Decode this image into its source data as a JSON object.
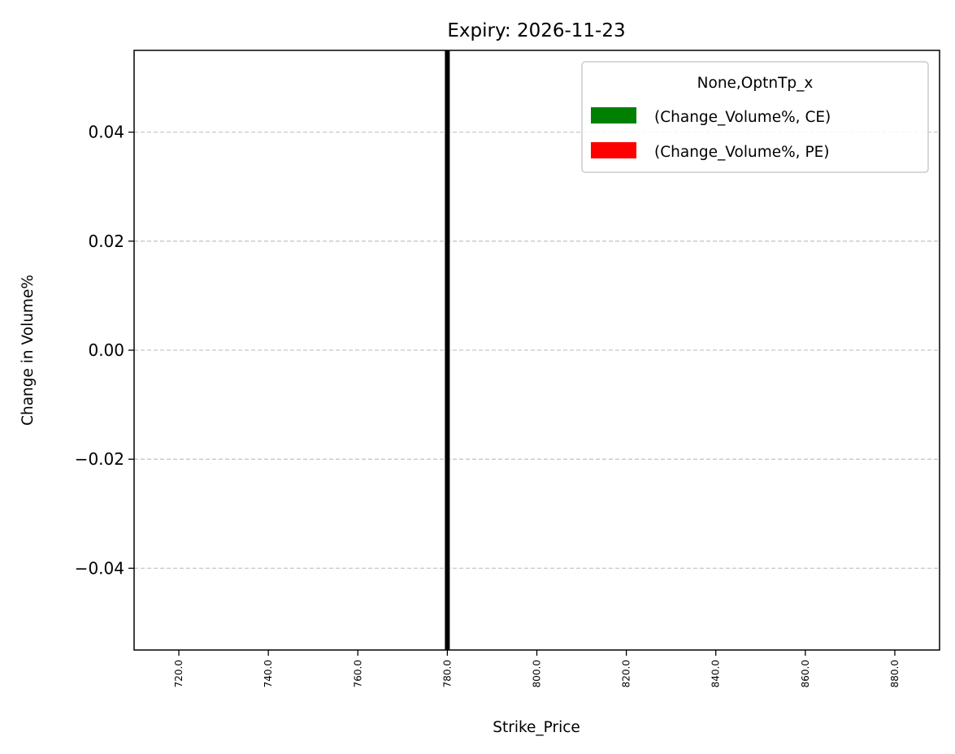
{
  "chart_data": {
    "type": "bar",
    "title": "Expiry: 2026-11-23",
    "xlabel": "Strike_Price",
    "ylabel": "Change in Volume%",
    "x_ticks": [
      "720.0",
      "740.0",
      "760.0",
      "780.0",
      "800.0",
      "820.0",
      "840.0",
      "860.0",
      "880.0"
    ],
    "y_ticks": [
      "0.04",
      "0.02",
      "0.00",
      "−0.02",
      "−0.04"
    ],
    "xlim": [
      710,
      890
    ],
    "ylim": [
      -0.055,
      0.055
    ],
    "grid": "y-dashed",
    "legend": {
      "title": "None,OptnTp_x",
      "placement": "top-right",
      "entries": [
        {
          "label": "(Change_Volume%, CE)",
          "color": "#008000"
        },
        {
          "label": "(Change_Volume%, PE)",
          "color": "#ff0000"
        }
      ]
    },
    "series": [
      {
        "name": "(Change_Volume%, CE)",
        "color": "#008000",
        "x": [
          780
        ],
        "values": [
          0
        ]
      },
      {
        "name": "(Change_Volume%, PE)",
        "color": "#ff0000",
        "x": [
          780
        ],
        "values": [
          0
        ]
      }
    ],
    "vline": {
      "x": 780,
      "color": "#000000"
    }
  }
}
